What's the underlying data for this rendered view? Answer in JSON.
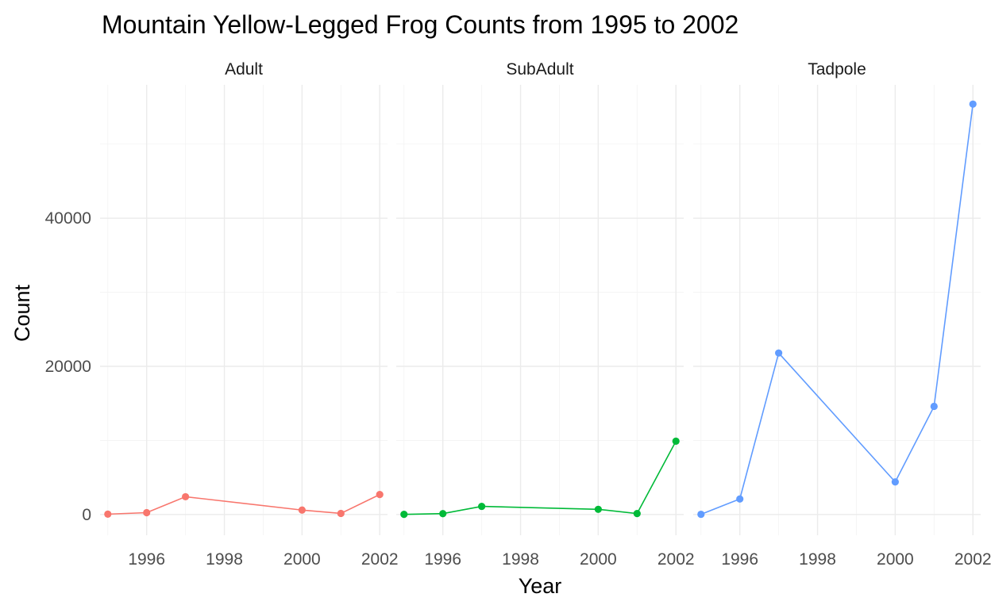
{
  "chart_data": {
    "type": "line",
    "title": "Mountain Yellow-Legged Frog Counts from 1995 to 2002",
    "xlabel": "Year",
    "ylabel": "Count",
    "xlim": [
      1994.8,
      2002.2
    ],
    "ylim": [
      -2800,
      58000
    ],
    "x_ticks": [
      1996,
      1998,
      2000,
      2002
    ],
    "x_tick_labels": [
      "1996",
      "1998",
      "2000",
      "2002"
    ],
    "y_ticks": [
      0,
      20000,
      40000
    ],
    "y_tick_labels": [
      "0",
      "20000",
      "40000"
    ],
    "grid": true,
    "legend": "none",
    "facets": [
      {
        "name": "Adult",
        "color": "#F8766D",
        "x": [
          1995,
          1996,
          1997,
          2000,
          2001,
          2002
        ],
        "y": [
          50,
          250,
          2400,
          600,
          150,
          2700
        ]
      },
      {
        "name": "SubAdult",
        "color": "#00BA38",
        "x": [
          1995,
          1996,
          1997,
          2000,
          2001,
          2002
        ],
        "y": [
          20,
          120,
          1100,
          700,
          130,
          9900
        ]
      },
      {
        "name": "Tadpole",
        "color": "#619CFF",
        "x": [
          1995,
          1996,
          1997,
          2000,
          2001,
          2002
        ],
        "y": [
          30,
          2100,
          21800,
          4400,
          14600,
          55400
        ]
      }
    ]
  }
}
